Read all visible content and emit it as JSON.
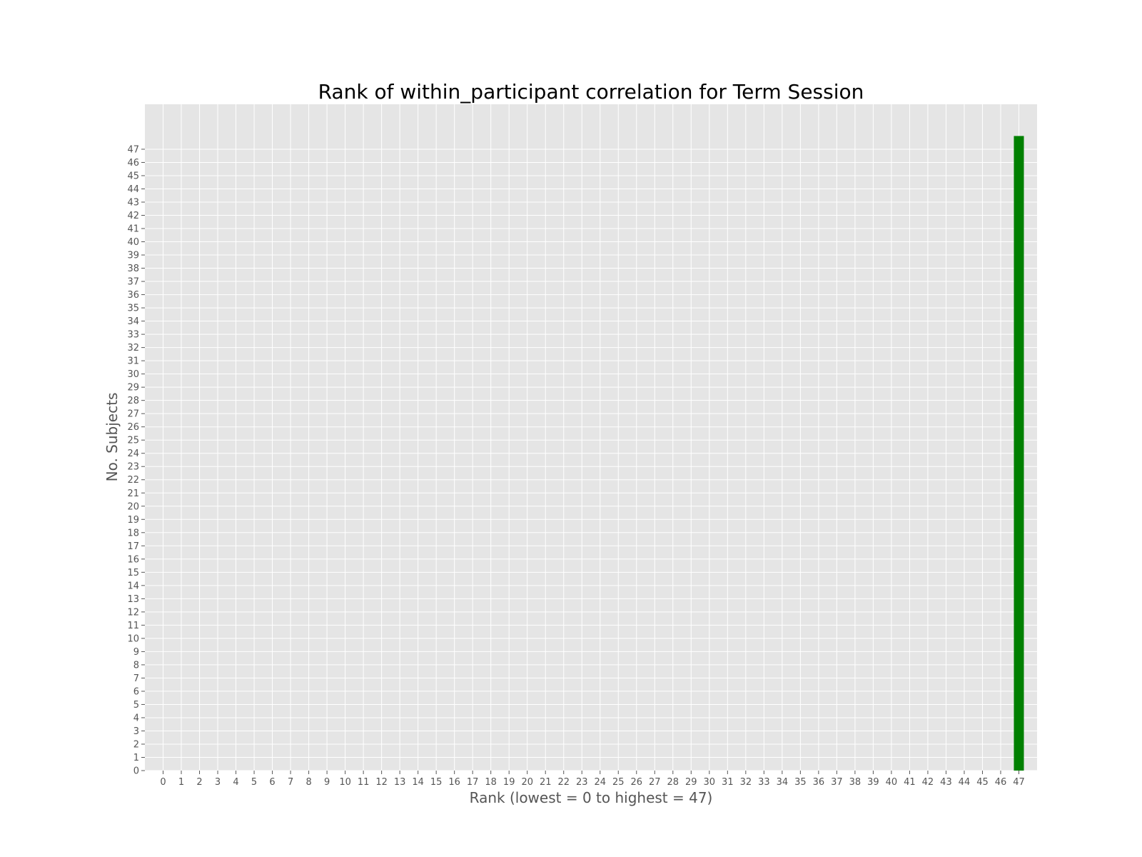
{
  "chart_data": {
    "type": "bar",
    "title": "Rank of within_participant correlation for Term Session",
    "xlabel": "Rank (lowest = 0 to highest = 47)",
    "ylabel": "No. Subjects",
    "categories": [
      0,
      1,
      2,
      3,
      4,
      5,
      6,
      7,
      8,
      9,
      10,
      11,
      12,
      13,
      14,
      15,
      16,
      17,
      18,
      19,
      20,
      21,
      22,
      23,
      24,
      25,
      26,
      27,
      28,
      29,
      30,
      31,
      32,
      33,
      34,
      35,
      36,
      37,
      38,
      39,
      40,
      41,
      42,
      43,
      44,
      45,
      46,
      47
    ],
    "values": [
      0,
      0,
      0,
      0,
      0,
      0,
      0,
      0,
      0,
      0,
      0,
      0,
      0,
      0,
      0,
      0,
      0,
      0,
      0,
      0,
      0,
      0,
      0,
      0,
      0,
      0,
      0,
      0,
      0,
      0,
      0,
      0,
      0,
      0,
      0,
      0,
      0,
      0,
      0,
      0,
      0,
      0,
      0,
      0,
      0,
      0,
      0,
      48
    ],
    "xlim": [
      -1,
      48
    ],
    "ylim": [
      0,
      50.4
    ],
    "yticks": [
      0,
      1,
      2,
      3,
      4,
      5,
      6,
      7,
      8,
      9,
      10,
      11,
      12,
      13,
      14,
      15,
      16,
      17,
      18,
      19,
      20,
      21,
      22,
      23,
      24,
      25,
      26,
      27,
      28,
      29,
      30,
      31,
      32,
      33,
      34,
      35,
      36,
      37,
      38,
      39,
      40,
      41,
      42,
      43,
      44,
      45,
      46,
      47
    ],
    "grid": true,
    "colors": {
      "bar": "#008000",
      "background": "#e5e5e5",
      "grid": "#ffffff"
    }
  }
}
